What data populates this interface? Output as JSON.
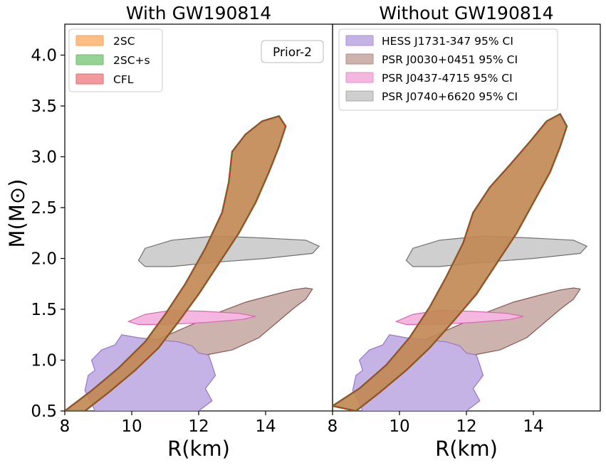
{
  "chart_data": {
    "type": "area",
    "ylabel": "M(M⊙)",
    "xlabel": "R(km)",
    "xlim": [
      8,
      16
    ],
    "ylim": [
      0.5,
      4.3
    ],
    "xticks": [
      8,
      10,
      12,
      14
    ],
    "yticks": [
      0.5,
      1.0,
      1.5,
      2.0,
      2.5,
      3.0,
      3.5,
      4.0
    ],
    "xtick_labels": [
      "8",
      "10",
      "12",
      "14"
    ],
    "ytick_labels": [
      "0.5",
      "1.0",
      "1.5",
      "2.0",
      "2.5",
      "3.0",
      "3.5",
      "4.0"
    ],
    "panels": [
      {
        "title": "With GW190814",
        "annotation": "Prior-2",
        "legend": [
          {
            "label": "2SC",
            "color": "#ffbe86"
          },
          {
            "label": "2SC+s",
            "color": "#96d294"
          },
          {
            "label": "CFL",
            "color": "#f09a9b"
          }
        ],
        "band": {
          "left": [
            [
              8.0,
              0.5
            ],
            [
              8.8,
              0.7
            ],
            [
              9.6,
              0.92
            ],
            [
              10.4,
              1.18
            ],
            [
              11.0,
              1.45
            ],
            [
              11.6,
              1.75
            ],
            [
              12.2,
              2.1
            ],
            [
              12.7,
              2.45
            ],
            [
              12.9,
              2.75
            ],
            [
              13.0,
              3.05
            ],
            [
              13.4,
              3.22
            ],
            [
              13.9,
              3.35
            ],
            [
              14.4,
              3.4
            ],
            [
              14.6,
              3.3
            ]
          ],
          "right": [
            [
              8.6,
              0.5
            ],
            [
              9.3,
              0.68
            ],
            [
              10.1,
              0.9
            ],
            [
              10.8,
              1.12
            ],
            [
              11.4,
              1.38
            ],
            [
              12.0,
              1.65
            ],
            [
              12.6,
              1.95
            ],
            [
              13.2,
              2.25
            ],
            [
              13.7,
              2.55
            ],
            [
              14.1,
              2.85
            ],
            [
              14.4,
              3.1
            ],
            [
              14.6,
              3.3
            ]
          ]
        }
      },
      {
        "title": "Without GW190814",
        "legend": [
          {
            "label": "HESS J1731-347 95% CI",
            "color": "#c5b3e6"
          },
          {
            "label": "PSR J0030+0451 95% CI",
            "color": "#cdb3ae"
          },
          {
            "label": "PSR J0437-4715 95% CI",
            "color": "#f4b8e0"
          },
          {
            "label": "PSR J0740+6620 95% CI",
            "color": "#cfcfcf"
          }
        ],
        "band": {
          "left": [
            [
              8.0,
              0.55
            ],
            [
              8.8,
              0.72
            ],
            [
              9.6,
              0.95
            ],
            [
              10.3,
              1.22
            ],
            [
              10.9,
              1.52
            ],
            [
              11.4,
              1.82
            ],
            [
              11.9,
              2.15
            ],
            [
              12.2,
              2.45
            ],
            [
              12.7,
              2.7
            ],
            [
              13.3,
              2.92
            ],
            [
              13.9,
              3.15
            ],
            [
              14.4,
              3.35
            ],
            [
              14.8,
              3.42
            ],
            [
              15.0,
              3.3
            ]
          ],
          "right": [
            [
              8.7,
              0.5
            ],
            [
              9.4,
              0.68
            ],
            [
              10.2,
              0.9
            ],
            [
              10.9,
              1.12
            ],
            [
              11.6,
              1.38
            ],
            [
              12.3,
              1.65
            ],
            [
              12.9,
              1.95
            ],
            [
              13.5,
              2.25
            ],
            [
              14.0,
              2.55
            ],
            [
              14.5,
              2.85
            ],
            [
              14.8,
              3.1
            ],
            [
              15.0,
              3.3
            ]
          ]
        }
      }
    ],
    "constraints": [
      {
        "name": "J0740",
        "fill": "#cfcfcf",
        "stroke": "#707070",
        "points": [
          [
            10.2,
            1.98
          ],
          [
            10.4,
            2.1
          ],
          [
            11.2,
            2.18
          ],
          [
            12.5,
            2.22
          ],
          [
            14.0,
            2.2
          ],
          [
            15.2,
            2.18
          ],
          [
            15.6,
            2.12
          ],
          [
            15.4,
            2.05
          ],
          [
            14.0,
            2.0
          ],
          [
            12.4,
            1.96
          ],
          [
            11.2,
            1.92
          ],
          [
            10.4,
            1.92
          ]
        ]
      },
      {
        "name": "J0030",
        "fill": "#cdb3ae",
        "stroke": "#8b5750",
        "points": [
          [
            10.0,
            1.02
          ],
          [
            10.2,
            1.1
          ],
          [
            10.9,
            1.22
          ],
          [
            11.8,
            1.35
          ],
          [
            12.6,
            1.47
          ],
          [
            13.4,
            1.57
          ],
          [
            14.2,
            1.64
          ],
          [
            14.8,
            1.69
          ],
          [
            15.2,
            1.71
          ],
          [
            15.4,
            1.7
          ],
          [
            15.2,
            1.6
          ],
          [
            14.8,
            1.5
          ],
          [
            14.3,
            1.36
          ],
          [
            13.8,
            1.22
          ],
          [
            13.0,
            1.1
          ],
          [
            12.2,
            1.05
          ],
          [
            11.4,
            1.02
          ],
          [
            10.6,
            1.0
          ]
        ]
      },
      {
        "name": "J0437",
        "fill": "#f4b8e0",
        "stroke": "#d967b3",
        "points": [
          [
            9.9,
            1.38
          ],
          [
            10.4,
            1.45
          ],
          [
            11.2,
            1.49
          ],
          [
            12.2,
            1.48
          ],
          [
            13.2,
            1.46
          ],
          [
            13.7,
            1.43
          ],
          [
            13.3,
            1.4
          ],
          [
            12.2,
            1.37
          ],
          [
            11.0,
            1.35
          ],
          [
            10.2,
            1.35
          ]
        ]
      },
      {
        "name": "HESS",
        "fill": "#c5b3e6",
        "stroke": "#9a72cf",
        "points": [
          [
            8.9,
            0.5
          ],
          [
            8.8,
            0.58
          ],
          [
            8.6,
            0.7
          ],
          [
            8.7,
            0.85
          ],
          [
            8.9,
            0.9
          ],
          [
            8.8,
            1.0
          ],
          [
            9.1,
            1.1
          ],
          [
            9.5,
            1.15
          ],
          [
            9.7,
            1.25
          ],
          [
            10.2,
            1.22
          ],
          [
            10.8,
            1.2
          ],
          [
            11.4,
            1.18
          ],
          [
            11.8,
            1.14
          ],
          [
            12.0,
            1.07
          ],
          [
            12.3,
            1.05
          ],
          [
            12.4,
            0.95
          ],
          [
            12.5,
            0.85
          ],
          [
            12.2,
            0.72
          ],
          [
            12.4,
            0.6
          ],
          [
            12.0,
            0.5
          ],
          [
            11.5,
            0.5
          ],
          [
            10.5,
            0.5
          ],
          [
            9.5,
            0.5
          ]
        ]
      }
    ]
  }
}
